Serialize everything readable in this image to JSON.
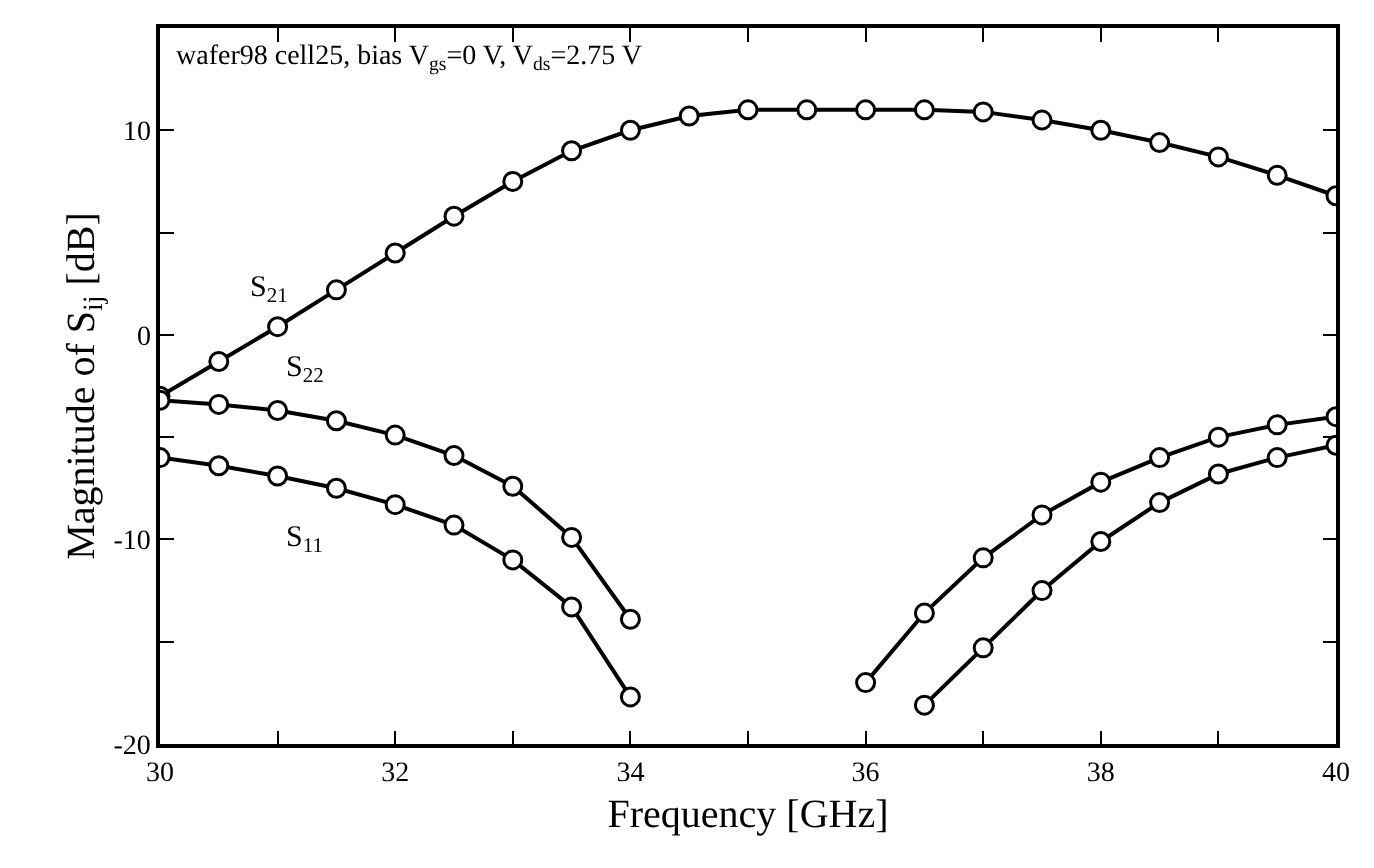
{
  "chart_data": {
    "type": "line",
    "xlabel": "Frequency [GHz]",
    "ylabel": "Magnitude of S$_{ij}$ [dB]",
    "annotations": [
      "wafer98 cell25, bias V$_{gs}$=0 V, V$_{ds}$=2.75 V"
    ],
    "x": [
      30,
      30.5,
      31,
      31.5,
      32,
      32.5,
      33,
      33.5,
      34,
      34.5,
      35,
      35.5,
      36,
      36.5,
      37,
      37.5,
      38,
      38.5,
      39,
      39.5,
      40
    ],
    "series": [
      {
        "name": "S$_{21}$",
        "color": "#000000",
        "values": [
          -3.0,
          -1.3,
          0.4,
          2.2,
          4.0,
          5.8,
          7.5,
          9.0,
          10.0,
          10.7,
          11.0,
          11.0,
          11.0,
          11.0,
          10.9,
          10.5,
          10.0,
          9.4,
          8.7,
          7.8,
          6.8
        ]
      },
      {
        "name": "S$_{22}$",
        "color": "#000000",
        "values": [
          -3.2,
          -3.4,
          -3.7,
          -4.2,
          -4.9,
          -5.9,
          -7.4,
          -9.9,
          -13.9,
          null,
          null,
          null,
          -17.0,
          -13.6,
          -10.9,
          -8.8,
          -7.2,
          -6.0,
          -5.0,
          -4.4,
          -4.0
        ]
      },
      {
        "name": "S$_{11}$",
        "color": "#000000",
        "values": [
          -6.0,
          -6.4,
          -6.9,
          -7.5,
          -8.3,
          -9.3,
          -11.0,
          -13.3,
          -17.7,
          null,
          null,
          null,
          null,
          -18.1,
          -15.3,
          -12.5,
          -10.1,
          -8.2,
          -6.8,
          -6.0,
          -5.4
        ]
      }
    ],
    "xlim": [
      30,
      40
    ],
    "xticks": [
      30,
      {
        "value": 31,
        "label": null
      },
      32,
      {
        "value": 33,
        "label": null
      },
      34,
      {
        "value": 35,
        "label": null
      },
      36,
      {
        "value": 37,
        "label": null
      },
      38,
      {
        "value": 39,
        "label": null
      },
      40
    ],
    "ylim": [
      -20,
      15
    ],
    "yticks": [
      -20,
      {
        "value": -15,
        "label": null
      },
      -10,
      {
        "value": -5,
        "label": null
      },
      0,
      {
        "value": 5,
        "label": null
      },
      10
    ],
    "legend": false,
    "marker": "circle",
    "line_style": "solid"
  }
}
